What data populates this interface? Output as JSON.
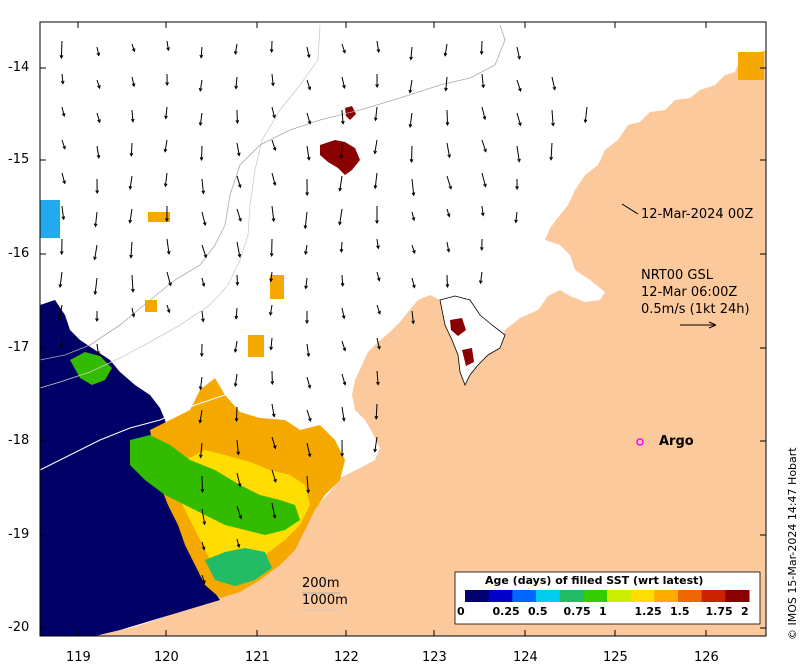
{
  "map": {
    "y_ticks": [
      "-14",
      "-15",
      "-16",
      "-17",
      "-18",
      "-19",
      "-20"
    ],
    "x_ticks": [
      "119",
      "120",
      "121",
      "122",
      "123",
      "124",
      "125",
      "126"
    ],
    "annotations": {
      "track_date": "12-Mar-2024 00Z",
      "product": "NRT00 GSL",
      "valid_time": "12-Mar 06:00Z",
      "scale": "0.5m/s (1kt 24h)",
      "argo": "Argo"
    },
    "contours": {
      "c200": "200m",
      "c1000": "1000m"
    },
    "colorbar": {
      "title": "Age (days) of filled SST (wrt latest)",
      "labels": [
        "0",
        "0.25",
        "0.5",
        "0.75",
        "1",
        "1.25",
        "1.5",
        "1.75",
        "2"
      ],
      "colors": [
        "#00006e",
        "#0000c8",
        "#0066ff",
        "#00ccee",
        "#22bb66",
        "#33cc00",
        "#ccee00",
        "#ffdd00",
        "#ffaa00",
        "#ee6600",
        "#cc2200",
        "#880000"
      ]
    },
    "credit": "© IMOS 15-Mar-2024 14:47 Hobart",
    "colors": {
      "land": "#fcc99c",
      "ocean": "#ffffff",
      "old_sst": "#000066",
      "argo_marker": "#ff00ff"
    }
  }
}
